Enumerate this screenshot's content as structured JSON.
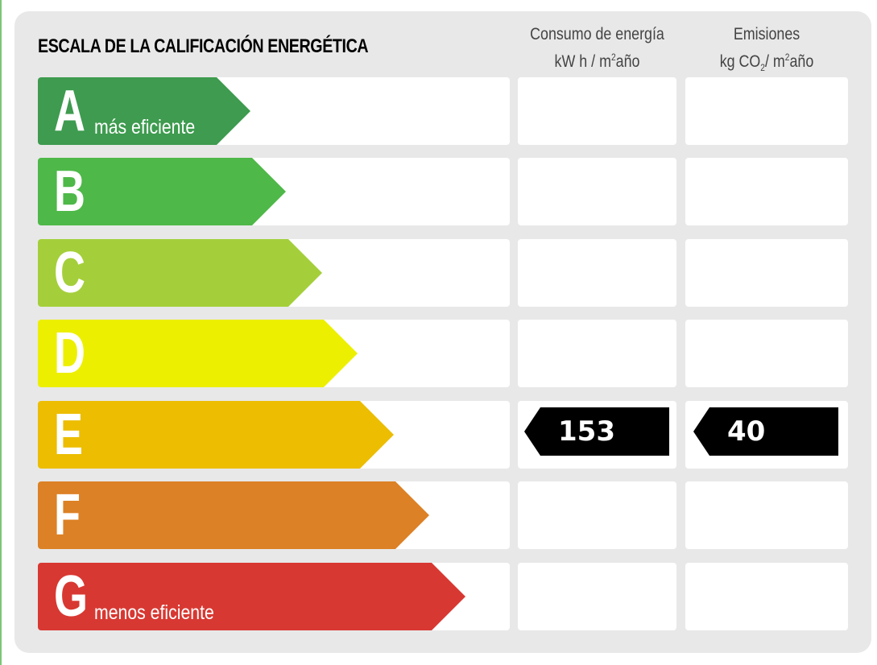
{
  "title": "ESCALA DE LA CALIFICACIÓN ENERGÉTICA",
  "columns": {
    "consumo": {
      "line1": "Consumo de energía",
      "line2_pre": "kW h / m",
      "line2_sup": "2",
      "line2_post": "año"
    },
    "emisiones": {
      "line1": "Emisiones",
      "line2_pre": "kg CO",
      "line2_sub": "2",
      "line2_mid": "/ m",
      "line2_sup": "2",
      "line2_post": "año"
    }
  },
  "ratings": [
    {
      "letter": "A",
      "label": "más eficiente",
      "color": "#3e9b4f"
    },
    {
      "letter": "B",
      "label": "",
      "color": "#4eb848"
    },
    {
      "letter": "C",
      "label": "",
      "color": "#a4cf3a"
    },
    {
      "letter": "D",
      "label": "",
      "color": "#edef00"
    },
    {
      "letter": "E",
      "label": "",
      "color": "#ecbd00"
    },
    {
      "letter": "F",
      "label": "",
      "color": "#dc8125"
    },
    {
      "letter": "G",
      "label": "menos eficiente",
      "color": "#d83832"
    }
  ],
  "current": {
    "rating": "E",
    "consumo": "153",
    "emisiones": "40"
  }
}
